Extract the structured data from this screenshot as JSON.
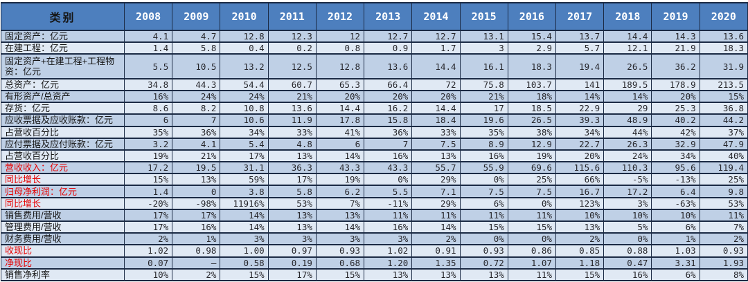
{
  "colors": {
    "header_bg": "#4d7fbe",
    "header_text": "#ffffff",
    "corner_text": "#151515",
    "row_odd": "#bfd0e6",
    "row_even": "#e0e9f4",
    "border": "#1b2a44",
    "label_text": "#151515",
    "red_label": "#e60000",
    "value_text": "#26262b"
  },
  "chart_data": {
    "type": "table",
    "title": "",
    "corner_label": "类别",
    "categories": [
      "2008",
      "2009",
      "2010",
      "2011",
      "2012",
      "2013",
      "2014",
      "2015",
      "2016",
      "2017",
      "2018",
      "2019",
      "2020"
    ],
    "rows": [
      {
        "label": "固定资产：亿元",
        "red": false,
        "tall": false,
        "values": [
          "4.1",
          "4.7",
          "12.8",
          "12.3",
          "12",
          "12.7",
          "12.7",
          "13.1",
          "15.4",
          "13.7",
          "14.4",
          "14.3",
          "13.6"
        ]
      },
      {
        "label": "在建工程：亿元",
        "red": false,
        "tall": false,
        "values": [
          "1.4",
          "5.8",
          "0.4",
          "0.2",
          "0.8",
          "0.9",
          "1.7",
          "3",
          "2.9",
          "5.7",
          "12.1",
          "21.9",
          "18.3"
        ]
      },
      {
        "label": "固定资产+在建工程+工程物资：亿元",
        "red": false,
        "tall": true,
        "values": [
          "5.5",
          "10.5",
          "13.2",
          "12.5",
          "12.8",
          "13.6",
          "14.4",
          "16.1",
          "18.3",
          "19.4",
          "26.5",
          "36.2",
          "31.9"
        ]
      },
      {
        "label": "总资产：亿元",
        "red": false,
        "tall": false,
        "values": [
          "34.8",
          "44.3",
          "54.4",
          "60.7",
          "65.3",
          "66.4",
          "72",
          "75.8",
          "103.7",
          "141",
          "189.5",
          "178.9",
          "213.5"
        ]
      },
      {
        "label": "有形资产/总资产",
        "red": false,
        "tall": false,
        "values": [
          "16%",
          "24%",
          "24%",
          "21%",
          "20%",
          "20%",
          "20%",
          "21%",
          "18%",
          "14%",
          "14%",
          "20%",
          "15%"
        ]
      },
      {
        "label": "存货：亿元",
        "red": false,
        "tall": false,
        "values": [
          "8.6",
          "8.2",
          "10.8",
          "13.6",
          "14.4",
          "16.2",
          "14.4",
          "17",
          "18.5",
          "22.9",
          "29",
          "25.3",
          "36.8"
        ]
      },
      {
        "label": "应收票据及应收账款：亿元",
        "red": false,
        "tall": false,
        "values": [
          "6",
          "7",
          "10.6",
          "11.9",
          "17.8",
          "15.8",
          "18.4",
          "19.6",
          "26.5",
          "39.3",
          "48.9",
          "40.2",
          "44.2"
        ]
      },
      {
        "label": "占营收百分比",
        "red": false,
        "tall": false,
        "values": [
          "35%",
          "36%",
          "34%",
          "33%",
          "41%",
          "36%",
          "33%",
          "35%",
          "38%",
          "34%",
          "44%",
          "42%",
          "37%"
        ]
      },
      {
        "label": "应付票据及应付账款：亿元",
        "red": false,
        "tall": false,
        "values": [
          "3.2",
          "4.1",
          "5.4",
          "4.8",
          "6",
          "7",
          "7.5",
          "8.9",
          "12.9",
          "22.7",
          "26.3",
          "32.9",
          "47.9"
        ]
      },
      {
        "label": "占营收百分比",
        "red": false,
        "tall": false,
        "values": [
          "19%",
          "21%",
          "17%",
          "13%",
          "14%",
          "16%",
          "13%",
          "16%",
          "19%",
          "20%",
          "24%",
          "34%",
          "40%"
        ]
      },
      {
        "label": "营收收入：亿元",
        "red": true,
        "tall": false,
        "values": [
          "17.2",
          "19.5",
          "31.1",
          "36.3",
          "43.3",
          "43.3",
          "55.7",
          "55.9",
          "69.6",
          "115.6",
          "110.3",
          "95.6",
          "119.4"
        ]
      },
      {
        "label": "同比增长",
        "red": true,
        "tall": false,
        "values": [
          "15%",
          "13%",
          "59%",
          "17%",
          "19%",
          "0%",
          "29%",
          "0%",
          "25%",
          "66%",
          "-5%",
          "-13%",
          "25%"
        ]
      },
      {
        "label": "归母净利润：亿元",
        "red": true,
        "tall": false,
        "values": [
          "1.4",
          "0",
          "3.8",
          "5.8",
          "6.2",
          "5.5",
          "7.1",
          "7.5",
          "7.5",
          "16.7",
          "17.2",
          "6.4",
          "9.8"
        ]
      },
      {
        "label": "同比增长",
        "red": true,
        "tall": false,
        "values": [
          "-20%",
          "-98%",
          "11916%",
          "53%",
          "7%",
          "-11%",
          "29%",
          "6%",
          "0%",
          "123%",
          "3%",
          "-63%",
          "53%"
        ]
      },
      {
        "label": "销售费用/营收",
        "red": false,
        "tall": false,
        "values": [
          "17%",
          "17%",
          "14%",
          "13%",
          "13%",
          "11%",
          "11%",
          "11%",
          "11%",
          "10%",
          "10%",
          "10%",
          "11%"
        ]
      },
      {
        "label": "管理费用/营收",
        "red": false,
        "tall": false,
        "values": [
          "17%",
          "16%",
          "14%",
          "13%",
          "14%",
          "16%",
          "14%",
          "15%",
          "15%",
          "13%",
          "5%",
          "6%",
          "7%"
        ]
      },
      {
        "label": "财务费用/营收",
        "red": false,
        "tall": false,
        "values": [
          "2%",
          "1%",
          "3%",
          "3%",
          "3%",
          "3%",
          "2%",
          "0%",
          "0%",
          "2%",
          "0%",
          "1%",
          "2%"
        ]
      },
      {
        "label": "收现比",
        "red": true,
        "tall": false,
        "values": [
          "1.02",
          "0.98",
          "1.00",
          "0.97",
          "0.93",
          "1.02",
          "0.91",
          "0.93",
          "0.86",
          "0.85",
          "0.88",
          "1.03",
          "0.93"
        ]
      },
      {
        "label": "净现比",
        "red": true,
        "tall": false,
        "values": [
          "0.07",
          "–",
          "0.58",
          "0.19",
          "0.68",
          "1.20",
          "1.35",
          "0.72",
          "1.07",
          "1.18",
          "0.47",
          "3.31",
          "1.93"
        ]
      },
      {
        "label": "销售净利率",
        "red": false,
        "tall": false,
        "values": [
          "10%",
          "2%",
          "15%",
          "17%",
          "15%",
          "13%",
          "13%",
          "13%",
          "11%",
          "15%",
          "16%",
          "6%",
          "8%"
        ]
      }
    ]
  }
}
